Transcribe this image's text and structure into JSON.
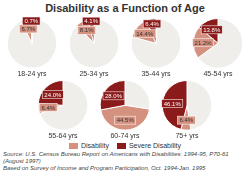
{
  "title": "Disability as a Function of Age",
  "legend": "bottom",
  "annotations": [
    "Source: U.S. Census Bureau Report on Americans with Disabilities: 1994-95, P70-61 (August 1997)",
    "Based on Survey of Income and Program Participation, Oct. 1994-Jan. 1995"
  ],
  "chart_data": [
    {
      "type": "pie",
      "title": "18-24 yrs",
      "categories": [
        null,
        "Disability",
        "Severe Disability"
      ],
      "values": [
        92.6,
        6.7,
        0.7
      ],
      "value_labels": [
        null,
        "6.7%",
        "0.7%"
      ],
      "colors": [
        "#f0eeeb",
        "#d4917f",
        "#8b1a1a"
      ],
      "data_labels": true
    },
    {
      "type": "pie",
      "title": "25-34 yrs",
      "categories": [
        null,
        "Disability",
        "Severe Disability"
      ],
      "values": [
        87.8,
        8.1,
        4.1
      ],
      "value_labels": [
        null,
        "8.1%",
        "4.1%"
      ],
      "colors": [
        "#f0eeeb",
        "#d4917f",
        "#8b1a1a"
      ],
      "data_labels": true
    },
    {
      "type": "pie",
      "title": "35-44 yrs",
      "categories": [
        null,
        "Disability",
        "Severe Disability"
      ],
      "values": [
        79.2,
        14.4,
        6.4
      ],
      "value_labels": [
        null,
        "14.4%",
        "6.4%"
      ],
      "colors": [
        "#f0eeeb",
        "#d4917f",
        "#8b1a1a"
      ],
      "data_labels": true
    },
    {
      "type": "pie",
      "title": "45-54 yrs",
      "categories": [
        null,
        "Disability",
        "Severe Disability"
      ],
      "values": [
        65.0,
        21.2,
        13.8
      ],
      "value_labels": [
        null,
        "21.2%",
        "13.8%"
      ],
      "colors": [
        "#f0eeeb",
        "#d4917f",
        "#8b1a1a"
      ],
      "data_labels": true
    },
    {
      "type": "pie",
      "title": "55-64 yrs",
      "categories": [
        null,
        "Disability",
        "Severe Disability"
      ],
      "values": [
        69.6,
        6.4,
        24.0
      ],
      "value_labels": [
        null,
        "6.4%",
        "24.0%"
      ],
      "colors": [
        "#f0eeeb",
        "#d4917f",
        "#8b1a1a"
      ],
      "data_labels": true
    },
    {
      "type": "pie",
      "title": "60-74 yrs",
      "categories": [
        null,
        "Disability",
        "Severe Disability"
      ],
      "values": [
        27.5,
        44.5,
        28.0
      ],
      "value_labels": [
        null,
        "44.5%",
        "28.0%"
      ],
      "colors": [
        "#f0eeeb",
        "#d4917f",
        "#8b1a1a"
      ],
      "data_labels": true
    },
    {
      "type": "pie",
      "title": "75+ yrs",
      "categories": [
        null,
        "Disability",
        "Severe Disability"
      ],
      "values": [
        47.5,
        6.4,
        46.1
      ],
      "value_labels": [
        null,
        "6.4%",
        "46.1%"
      ],
      "colors": [
        "#f0eeeb",
        "#d4917f",
        "#8b1a1a"
      ],
      "data_labels": true
    }
  ]
}
